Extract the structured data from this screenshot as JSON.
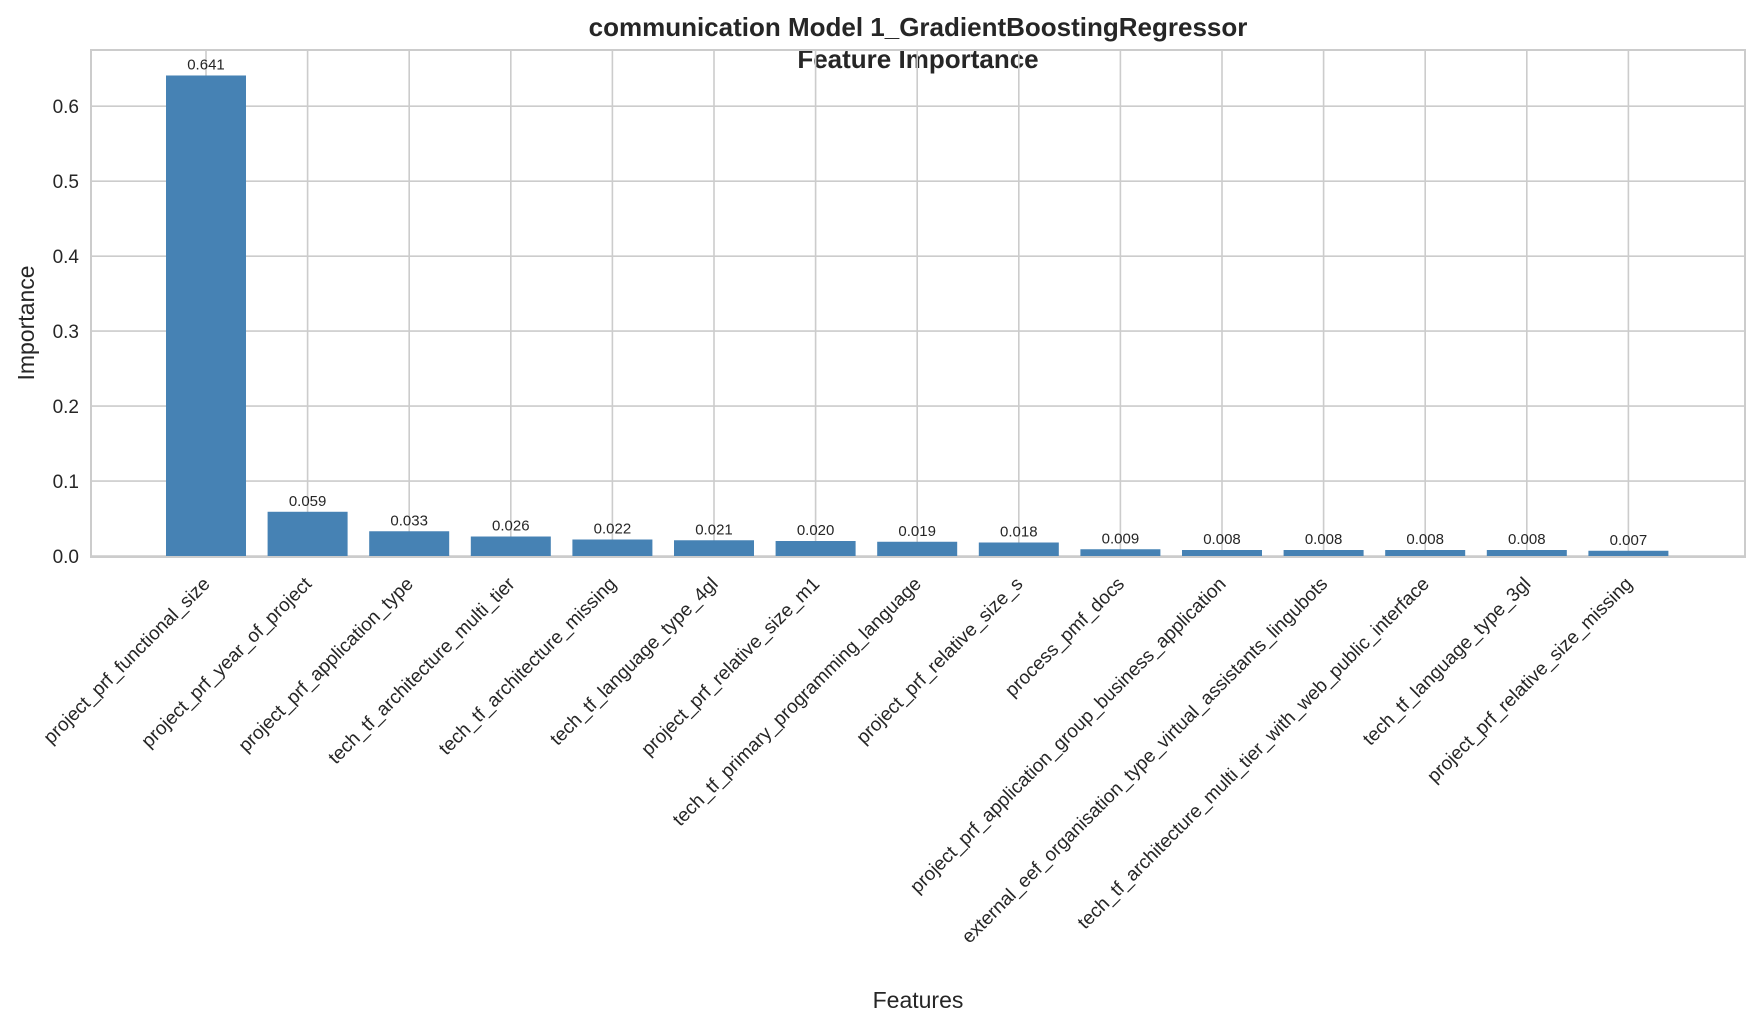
{
  "chart_data": {
    "type": "bar",
    "title": "communication Model 1_GradientBoostingRegressor",
    "subtitle": "Feature Importance",
    "xlabel": "Features",
    "ylabel": "Importance",
    "ylim": [
      0,
      0.675
    ],
    "yticks": [
      0.0,
      0.1,
      0.2,
      0.3,
      0.4,
      0.5,
      0.6
    ],
    "ytick_labels": [
      "0.0",
      "0.1",
      "0.2",
      "0.3",
      "0.4",
      "0.5",
      "0.6"
    ],
    "grid": true,
    "bar_color": "#4682b4",
    "categories": [
      "project_prf_functional_size",
      "project_prf_year_of_project",
      "project_prf_application_type",
      "tech_tf_architecture_multi_tier",
      "tech_tf_architecture_missing",
      "tech_tf_language_type_4gl",
      "project_prf_relative_size_m1",
      "tech_tf_primary_programming_language",
      "project_prf_relative_size_s",
      "process_pmf_docs",
      "project_prf_application_group_business_application",
      "external_eef_organisation_type_virtual_assistants_lingubots",
      "tech_tf_architecture_multi_tier_with_web_public_interface",
      "tech_tf_language_type_3gl",
      "project_prf_relative_size_missing"
    ],
    "values": [
      0.641,
      0.059,
      0.033,
      0.026,
      0.022,
      0.021,
      0.02,
      0.019,
      0.018,
      0.009,
      0.008,
      0.008,
      0.008,
      0.008,
      0.007
    ],
    "value_labels": [
      "0.641",
      "0.059",
      "0.033",
      "0.026",
      "0.022",
      "0.021",
      "0.020",
      "0.019",
      "0.018",
      "0.009",
      "0.008",
      "0.008",
      "0.008",
      "0.008",
      "0.007"
    ]
  }
}
